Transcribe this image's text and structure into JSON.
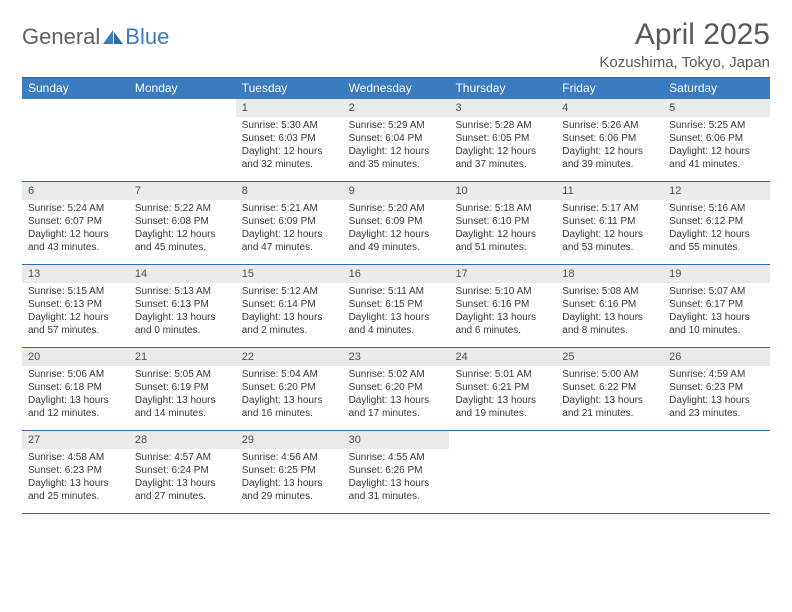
{
  "logo": {
    "part1": "General",
    "part2": "Blue"
  },
  "title": "April 2025",
  "subtitle": "Kozushima, Tokyo, Japan",
  "colors": {
    "header_bg": "#3b7bbf",
    "border": "#2e6ca8",
    "daynum_bg": "#e9eaec"
  },
  "day_headers": [
    "Sunday",
    "Monday",
    "Tuesday",
    "Wednesday",
    "Thursday",
    "Friday",
    "Saturday"
  ],
  "weeks": [
    [
      {
        "empty": true
      },
      {
        "empty": true
      },
      {
        "num": "1",
        "sunrise": "Sunrise: 5:30 AM",
        "sunset": "Sunset: 6:03 PM",
        "day1": "Daylight: 12 hours",
        "day2": "and 32 minutes."
      },
      {
        "num": "2",
        "sunrise": "Sunrise: 5:29 AM",
        "sunset": "Sunset: 6:04 PM",
        "day1": "Daylight: 12 hours",
        "day2": "and 35 minutes."
      },
      {
        "num": "3",
        "sunrise": "Sunrise: 5:28 AM",
        "sunset": "Sunset: 6:05 PM",
        "day1": "Daylight: 12 hours",
        "day2": "and 37 minutes."
      },
      {
        "num": "4",
        "sunrise": "Sunrise: 5:26 AM",
        "sunset": "Sunset: 6:06 PM",
        "day1": "Daylight: 12 hours",
        "day2": "and 39 minutes."
      },
      {
        "num": "5",
        "sunrise": "Sunrise: 5:25 AM",
        "sunset": "Sunset: 6:06 PM",
        "day1": "Daylight: 12 hours",
        "day2": "and 41 minutes."
      }
    ],
    [
      {
        "num": "6",
        "sunrise": "Sunrise: 5:24 AM",
        "sunset": "Sunset: 6:07 PM",
        "day1": "Daylight: 12 hours",
        "day2": "and 43 minutes."
      },
      {
        "num": "7",
        "sunrise": "Sunrise: 5:22 AM",
        "sunset": "Sunset: 6:08 PM",
        "day1": "Daylight: 12 hours",
        "day2": "and 45 minutes."
      },
      {
        "num": "8",
        "sunrise": "Sunrise: 5:21 AM",
        "sunset": "Sunset: 6:09 PM",
        "day1": "Daylight: 12 hours",
        "day2": "and 47 minutes."
      },
      {
        "num": "9",
        "sunrise": "Sunrise: 5:20 AM",
        "sunset": "Sunset: 6:09 PM",
        "day1": "Daylight: 12 hours",
        "day2": "and 49 minutes."
      },
      {
        "num": "10",
        "sunrise": "Sunrise: 5:18 AM",
        "sunset": "Sunset: 6:10 PM",
        "day1": "Daylight: 12 hours",
        "day2": "and 51 minutes."
      },
      {
        "num": "11",
        "sunrise": "Sunrise: 5:17 AM",
        "sunset": "Sunset: 6:11 PM",
        "day1": "Daylight: 12 hours",
        "day2": "and 53 minutes."
      },
      {
        "num": "12",
        "sunrise": "Sunrise: 5:16 AM",
        "sunset": "Sunset: 6:12 PM",
        "day1": "Daylight: 12 hours",
        "day2": "and 55 minutes."
      }
    ],
    [
      {
        "num": "13",
        "sunrise": "Sunrise: 5:15 AM",
        "sunset": "Sunset: 6:13 PM",
        "day1": "Daylight: 12 hours",
        "day2": "and 57 minutes."
      },
      {
        "num": "14",
        "sunrise": "Sunrise: 5:13 AM",
        "sunset": "Sunset: 6:13 PM",
        "day1": "Daylight: 13 hours",
        "day2": "and 0 minutes."
      },
      {
        "num": "15",
        "sunrise": "Sunrise: 5:12 AM",
        "sunset": "Sunset: 6:14 PM",
        "day1": "Daylight: 13 hours",
        "day2": "and 2 minutes."
      },
      {
        "num": "16",
        "sunrise": "Sunrise: 5:11 AM",
        "sunset": "Sunset: 6:15 PM",
        "day1": "Daylight: 13 hours",
        "day2": "and 4 minutes."
      },
      {
        "num": "17",
        "sunrise": "Sunrise: 5:10 AM",
        "sunset": "Sunset: 6:16 PM",
        "day1": "Daylight: 13 hours",
        "day2": "and 6 minutes."
      },
      {
        "num": "18",
        "sunrise": "Sunrise: 5:08 AM",
        "sunset": "Sunset: 6:16 PM",
        "day1": "Daylight: 13 hours",
        "day2": "and 8 minutes."
      },
      {
        "num": "19",
        "sunrise": "Sunrise: 5:07 AM",
        "sunset": "Sunset: 6:17 PM",
        "day1": "Daylight: 13 hours",
        "day2": "and 10 minutes."
      }
    ],
    [
      {
        "num": "20",
        "sunrise": "Sunrise: 5:06 AM",
        "sunset": "Sunset: 6:18 PM",
        "day1": "Daylight: 13 hours",
        "day2": "and 12 minutes."
      },
      {
        "num": "21",
        "sunrise": "Sunrise: 5:05 AM",
        "sunset": "Sunset: 6:19 PM",
        "day1": "Daylight: 13 hours",
        "day2": "and 14 minutes."
      },
      {
        "num": "22",
        "sunrise": "Sunrise: 5:04 AM",
        "sunset": "Sunset: 6:20 PM",
        "day1": "Daylight: 13 hours",
        "day2": "and 16 minutes."
      },
      {
        "num": "23",
        "sunrise": "Sunrise: 5:02 AM",
        "sunset": "Sunset: 6:20 PM",
        "day1": "Daylight: 13 hours",
        "day2": "and 17 minutes."
      },
      {
        "num": "24",
        "sunrise": "Sunrise: 5:01 AM",
        "sunset": "Sunset: 6:21 PM",
        "day1": "Daylight: 13 hours",
        "day2": "and 19 minutes."
      },
      {
        "num": "25",
        "sunrise": "Sunrise: 5:00 AM",
        "sunset": "Sunset: 6:22 PM",
        "day1": "Daylight: 13 hours",
        "day2": "and 21 minutes."
      },
      {
        "num": "26",
        "sunrise": "Sunrise: 4:59 AM",
        "sunset": "Sunset: 6:23 PM",
        "day1": "Daylight: 13 hours",
        "day2": "and 23 minutes."
      }
    ],
    [
      {
        "num": "27",
        "sunrise": "Sunrise: 4:58 AM",
        "sunset": "Sunset: 6:23 PM",
        "day1": "Daylight: 13 hours",
        "day2": "and 25 minutes."
      },
      {
        "num": "28",
        "sunrise": "Sunrise: 4:57 AM",
        "sunset": "Sunset: 6:24 PM",
        "day1": "Daylight: 13 hours",
        "day2": "and 27 minutes."
      },
      {
        "num": "29",
        "sunrise": "Sunrise: 4:56 AM",
        "sunset": "Sunset: 6:25 PM",
        "day1": "Daylight: 13 hours",
        "day2": "and 29 minutes."
      },
      {
        "num": "30",
        "sunrise": "Sunrise: 4:55 AM",
        "sunset": "Sunset: 6:26 PM",
        "day1": "Daylight: 13 hours",
        "day2": "and 31 minutes."
      },
      {
        "empty": true
      },
      {
        "empty": true
      },
      {
        "empty": true
      }
    ]
  ]
}
